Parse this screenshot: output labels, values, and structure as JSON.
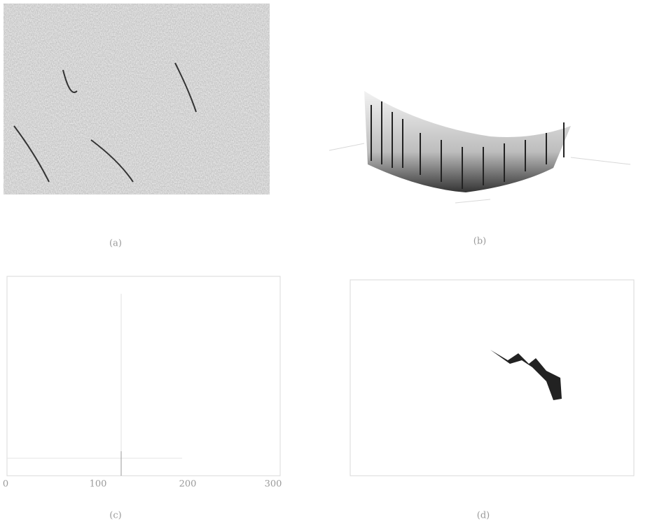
{
  "panels": [
    {
      "caption": "(a)"
    },
    {
      "caption": "(b)"
    },
    {
      "caption": "(c)",
      "x_ticks": [
        "0",
        "100",
        "200",
        "300"
      ]
    },
    {
      "caption": "(d)"
    }
  ]
}
